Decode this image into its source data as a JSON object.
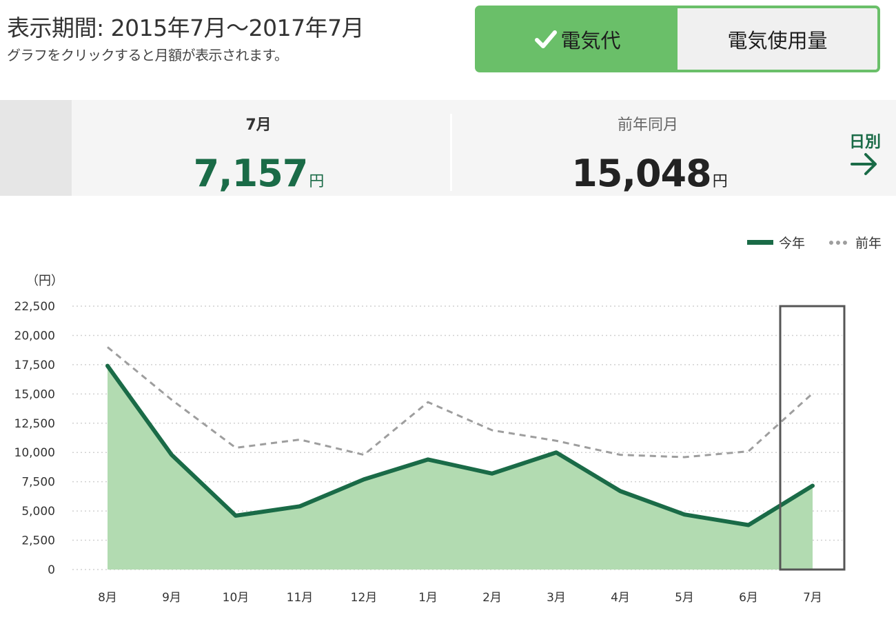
{
  "header": {
    "title": "表示期間: 2015年7月～2017年7月",
    "subtitle": "グラフをクリックすると月額が表示されます。"
  },
  "toggle": {
    "cost_label": "電気代",
    "usage_label": "電気使用量",
    "active": "cost"
  },
  "summary": {
    "current_label": "7月",
    "current_value": "7,157",
    "current_unit": "円",
    "prev_label": "前年同月",
    "prev_value": "15,048",
    "prev_unit": "円",
    "daily_link": "日別"
  },
  "colors": {
    "accent": "#1a6b47",
    "toggle_green": "#6abf69",
    "area_fill": "#b2dbb1",
    "prev_line": "#9e9e9e"
  },
  "chart_data": {
    "type": "line",
    "yunit": "（円）",
    "categories": [
      "8月",
      "9月",
      "10月",
      "11月",
      "12月",
      "1月",
      "2月",
      "3月",
      "4月",
      "5月",
      "6月",
      "7月"
    ],
    "ylim": [
      0,
      22500
    ],
    "yticks": [
      0,
      2500,
      5000,
      7500,
      10000,
      12500,
      15000,
      17500,
      20000,
      22500
    ],
    "ytick_labels": [
      "0",
      "2,500",
      "5,000",
      "7,500",
      "10,000",
      "12,500",
      "15,000",
      "17,500",
      "20,000",
      "22,500"
    ],
    "series": [
      {
        "name": "今年",
        "style": "solid-area",
        "values": [
          17400,
          9800,
          4600,
          5400,
          7700,
          9400,
          8200,
          10000,
          6700,
          4700,
          3800,
          7157
        ]
      },
      {
        "name": "前年",
        "style": "dashed",
        "values": [
          19000,
          14500,
          10400,
          11100,
          9800,
          14300,
          11900,
          11000,
          9800,
          9600,
          10100,
          15048
        ]
      }
    ],
    "selected_index": 11,
    "grid": true,
    "legend_position": "top-right"
  }
}
